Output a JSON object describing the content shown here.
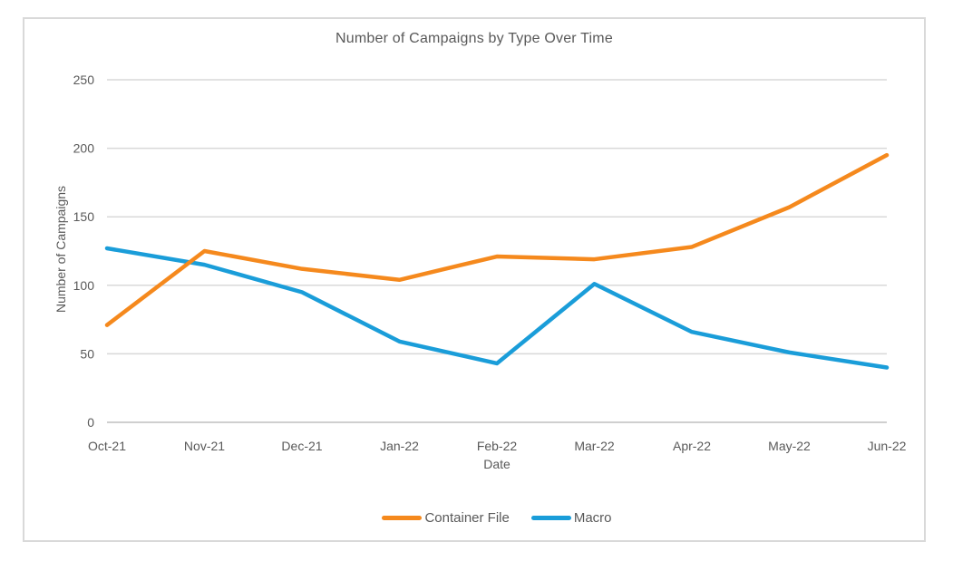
{
  "window": {
    "background": "#FFFFFF",
    "frame_border_color": "#D9D9D9"
  },
  "chart_data": {
    "type": "line",
    "title": "Number of Campaigns by Type Over Time",
    "xlabel": "Date",
    "ylabel": "Number of Campaigns",
    "categories": [
      "Oct-21",
      "Nov-21",
      "Dec-21",
      "Jan-22",
      "Feb-22",
      "Mar-22",
      "Apr-22",
      "May-22",
      "Jun-22"
    ],
    "yticks": [
      0,
      50,
      100,
      150,
      200,
      250
    ],
    "ylim": [
      0,
      250
    ],
    "grid": "horizontal",
    "legend_position": "bottom",
    "series": [
      {
        "name": "Container File",
        "color": "#F5891D",
        "values": [
          71,
          125,
          112,
          104,
          121,
          119,
          128,
          157,
          195
        ]
      },
      {
        "name": "Macro",
        "color": "#1A9DD9",
        "values": [
          127,
          115,
          95,
          59,
          43,
          101,
          66,
          51,
          40
        ]
      }
    ],
    "style": {
      "text_color": "#595959",
      "gridline_color": "#D9D9D9",
      "axis_line_color": "#BFBFBF"
    }
  }
}
